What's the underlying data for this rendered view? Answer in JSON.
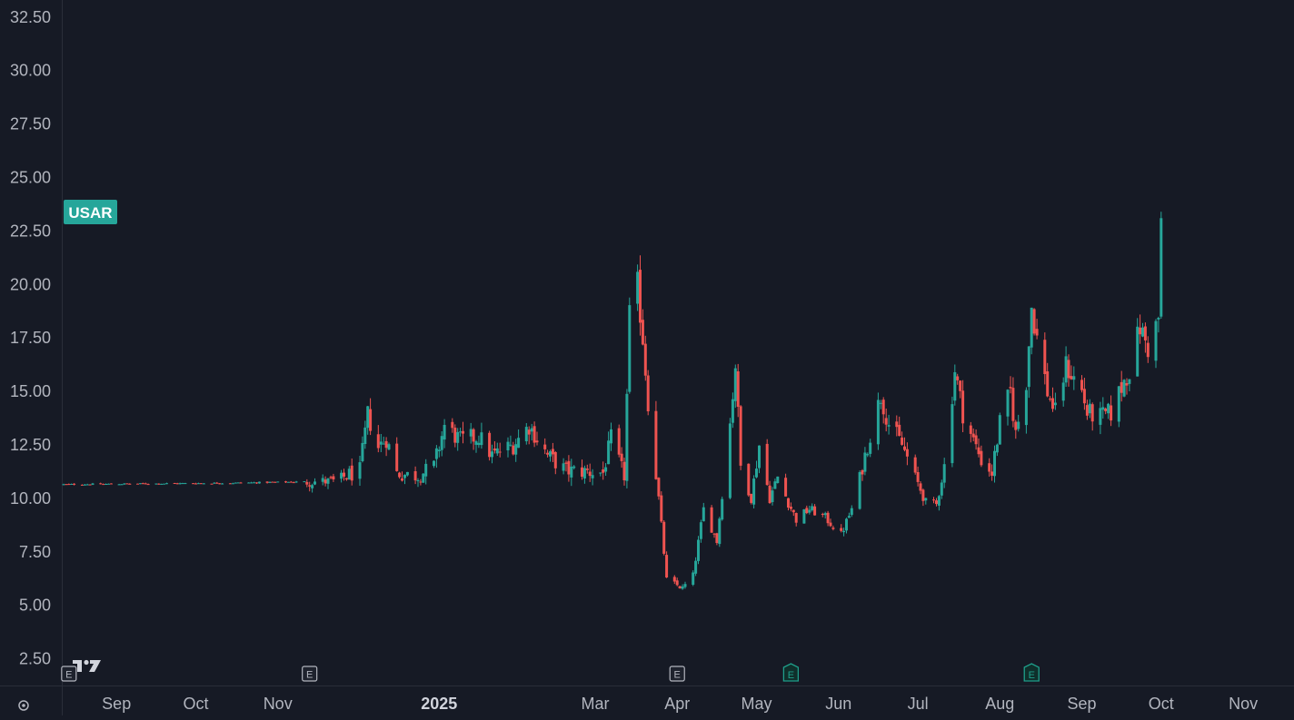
{
  "chart_data": {
    "type": "candlestick",
    "symbol": "USAR",
    "up_color": "#26a69a",
    "down_color": "#ef5350",
    "label_color": "#26a69a",
    "background": "#161a25",
    "text_color": "#b2b5be",
    "last_price": 23.3,
    "ylim": [
      1.25,
      33.3
    ],
    "y_ticks": [
      "2.50",
      "5.00",
      "7.50",
      "10.00",
      "12.50",
      "15.00",
      "17.50",
      "20.00",
      "22.50",
      "25.00",
      "27.50",
      "30.00",
      "32.50"
    ],
    "x_ticks": [
      {
        "label": "Sep",
        "date": "2024-09-01",
        "bold": false
      },
      {
        "label": "Oct",
        "date": "2024-10-01",
        "bold": false
      },
      {
        "label": "Nov",
        "date": "2024-11-01",
        "bold": false
      },
      {
        "label": "2025",
        "date": "2025-01-01",
        "bold": true
      },
      {
        "label": "Mar",
        "date": "2025-03-01",
        "bold": false
      },
      {
        "label": "Apr",
        "date": "2025-04-01",
        "bold": false
      },
      {
        "label": "May",
        "date": "2025-05-01",
        "bold": false
      },
      {
        "label": "Jun",
        "date": "2025-06-01",
        "bold": false
      },
      {
        "label": "Jul",
        "date": "2025-07-01",
        "bold": false
      },
      {
        "label": "Aug",
        "date": "2025-08-01",
        "bold": false
      },
      {
        "label": "Sep",
        "date": "2025-09-01",
        "bold": false
      },
      {
        "label": "Oct",
        "date": "2025-10-01",
        "bold": false
      },
      {
        "label": "Nov",
        "date": "2025-11-01",
        "bold": false
      }
    ],
    "earnings_markers": [
      {
        "date": "2024-08-14",
        "style": "past",
        "letter": "E"
      },
      {
        "date": "2024-11-13",
        "style": "past",
        "letter": "E"
      },
      {
        "date": "2025-04-01",
        "style": "past",
        "letter": "E"
      },
      {
        "date": "2025-05-14",
        "style": "upcoming",
        "letter": "E"
      },
      {
        "date": "2025-08-13",
        "style": "upcoming",
        "letter": "E"
      }
    ],
    "series": [
      {
        "name": "USAR",
        "anchors": [
          [
            "2024-08-12",
            10.65
          ],
          [
            "2024-10-15",
            10.72
          ],
          [
            "2024-11-22",
            10.8
          ],
          [
            "2024-12-02",
            11.3
          ],
          [
            "2024-12-05",
            13.9
          ],
          [
            "2024-12-09",
            12.4
          ],
          [
            "2024-12-12",
            12.8
          ],
          [
            "2024-12-16",
            11.2
          ],
          [
            "2024-12-23",
            11.0
          ],
          [
            "2024-12-30",
            11.5
          ],
          [
            "2025-01-03",
            13.4
          ],
          [
            "2025-01-09",
            12.7
          ],
          [
            "2025-01-16",
            12.9
          ],
          [
            "2025-01-21",
            12.0
          ],
          [
            "2025-01-29",
            12.5
          ],
          [
            "2025-02-04",
            13.4
          ],
          [
            "2025-02-11",
            12.0
          ],
          [
            "2025-02-18",
            11.3
          ],
          [
            "2025-03-04",
            11.2
          ],
          [
            "2025-03-07",
            12.8
          ],
          [
            "2025-03-12",
            11.0
          ],
          [
            "2025-03-14",
            18.5
          ],
          [
            "2025-03-17",
            19.9
          ],
          [
            "2025-03-19",
            17.5
          ],
          [
            "2025-03-21",
            14.5
          ],
          [
            "2025-03-25",
            10.0
          ],
          [
            "2025-03-28",
            6.2
          ],
          [
            "2025-04-03",
            5.8
          ],
          [
            "2025-04-07",
            6.4
          ],
          [
            "2025-04-11",
            9.5
          ],
          [
            "2025-04-16",
            8.0
          ],
          [
            "2025-04-21",
            13.5
          ],
          [
            "2025-04-23",
            16.3
          ],
          [
            "2025-04-25",
            11.5
          ],
          [
            "2025-04-29",
            10.0
          ],
          [
            "2025-05-02",
            12.5
          ],
          [
            "2025-05-06",
            10.0
          ],
          [
            "2025-05-09",
            11.0
          ],
          [
            "2025-05-13",
            9.8
          ],
          [
            "2025-05-16",
            9.0
          ],
          [
            "2025-05-21",
            9.5
          ],
          [
            "2025-05-27",
            9.1
          ],
          [
            "2025-06-02",
            8.3
          ],
          [
            "2025-06-06",
            9.5
          ],
          [
            "2025-06-12",
            12.5
          ],
          [
            "2025-06-17",
            14.8
          ],
          [
            "2025-06-20",
            13.5
          ],
          [
            "2025-06-25",
            12.5
          ],
          [
            "2025-06-30",
            11.0
          ],
          [
            "2025-07-04",
            9.8
          ],
          [
            "2025-07-08",
            9.7
          ],
          [
            "2025-07-11",
            11.5
          ],
          [
            "2025-07-15",
            16.0
          ],
          [
            "2025-07-18",
            14.0
          ],
          [
            "2025-07-22",
            12.7
          ],
          [
            "2025-07-25",
            11.8
          ],
          [
            "2025-07-29",
            11.2
          ],
          [
            "2025-08-01",
            13.5
          ],
          [
            "2025-08-05",
            15.0
          ],
          [
            "2025-08-07",
            13.0
          ],
          [
            "2025-08-11",
            15.5
          ],
          [
            "2025-08-13",
            19.0
          ],
          [
            "2025-08-15",
            17.5
          ],
          [
            "2025-08-19",
            15.0
          ],
          [
            "2025-08-22",
            14.0
          ],
          [
            "2025-08-26",
            16.2
          ],
          [
            "2025-09-01",
            15.0
          ],
          [
            "2025-09-03",
            14.0
          ],
          [
            "2025-09-08",
            13.8
          ],
          [
            "2025-09-12",
            14.0
          ],
          [
            "2025-09-17",
            15.5
          ],
          [
            "2025-09-19",
            16.0
          ],
          [
            "2025-09-23",
            18.0
          ],
          [
            "2025-09-26",
            17.0
          ],
          [
            "2025-09-30",
            18.4
          ],
          [
            "2025-10-01",
            23.1
          ]
        ]
      }
    ]
  }
}
